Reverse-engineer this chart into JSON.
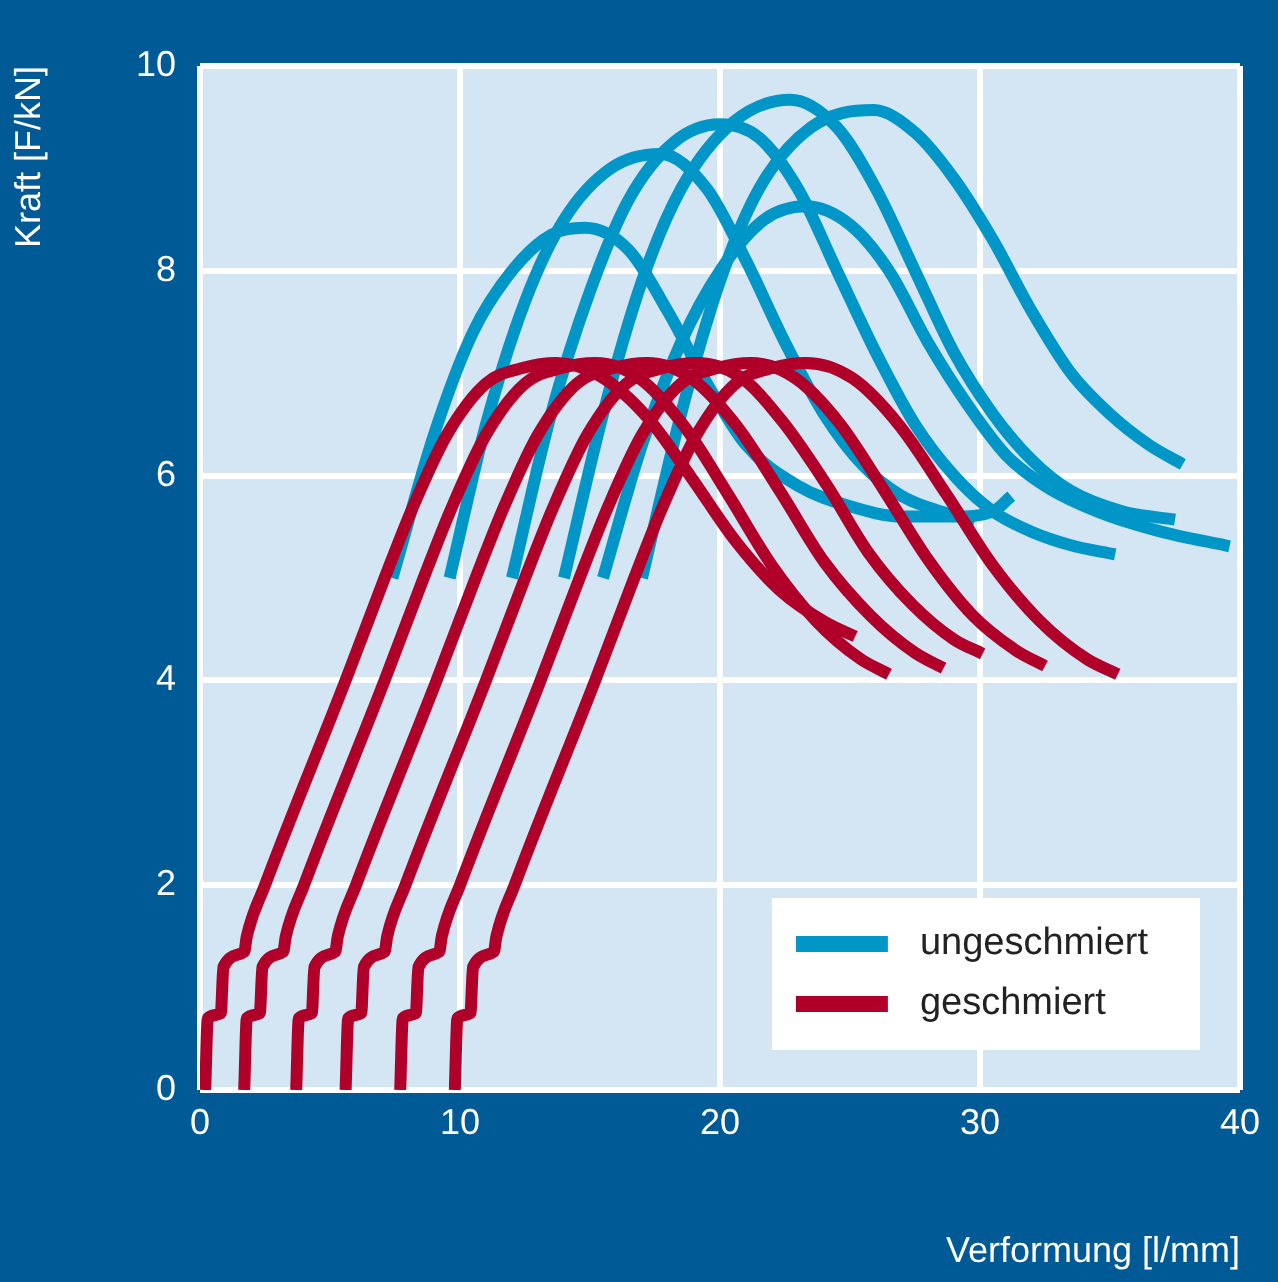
{
  "chart_data": {
    "type": "line",
    "xlabel": "Verformung [l/mm]",
    "ylabel": "Kraft [F/kN]",
    "xlim": [
      0,
      40
    ],
    "xticks": [
      0,
      10,
      20,
      30,
      40
    ],
    "ylim": [
      0,
      10
    ],
    "yticks": [
      0,
      2,
      4,
      6,
      8,
      10
    ],
    "grid": true,
    "legend": "bottom right",
    "marker": "none",
    "line_style": "solid",
    "series": [
      {
        "name": "ungeschmiert",
        "color": "#0096c8",
        "x": [
          7.4,
          9,
          10.5,
          12,
          13.5,
          14.8,
          16.5,
          18,
          19.5,
          21,
          23,
          25,
          27,
          29,
          30.5,
          31.2
        ],
        "values": [
          5,
          6.4,
          7.4,
          8,
          8.35,
          8.42,
          8.2,
          7.6,
          6.9,
          6.3,
          5.9,
          5.7,
          5.6,
          5.6,
          5.65,
          5.8
        ]
      },
      {
        "color": "#0096c8",
        "x": [
          9.6,
          11,
          12.5,
          14,
          15.8,
          17.7,
          19.5,
          21,
          22.5,
          24,
          25.5,
          27,
          28.5,
          29.8
        ],
        "values": [
          5,
          6.5,
          7.7,
          8.5,
          9,
          9.14,
          8.8,
          8.1,
          7.3,
          6.6,
          6.1,
          5.8,
          5.65,
          5.57
        ]
      },
      {
        "color": "#0096c8",
        "x": [
          12,
          13.5,
          15,
          16.5,
          18.2,
          20,
          21.5,
          23,
          24.5,
          26,
          27.5,
          29,
          30.5,
          32,
          33.5,
          35.2
        ],
        "values": [
          5,
          6.6,
          7.8,
          8.7,
          9.25,
          9.43,
          9.3,
          8.8,
          8,
          7.2,
          6.5,
          6,
          5.65,
          5.45,
          5.32,
          5.23
        ]
      },
      {
        "color": "#0096c8",
        "x": [
          14,
          15.5,
          17,
          18.5,
          20.5,
          22.7,
          24.5,
          26,
          27.5,
          29,
          30.5,
          32,
          33.5,
          35.5,
          37.5
        ],
        "values": [
          5,
          6.6,
          7.9,
          8.8,
          9.45,
          9.67,
          9.4,
          8.8,
          8,
          7.2,
          6.6,
          6.15,
          5.85,
          5.65,
          5.57
        ]
      },
      {
        "color": "#0096c8",
        "x": [
          17,
          18.5,
          20,
          21.5,
          23.5,
          25.9,
          27.5,
          29,
          30.5,
          32,
          33.5,
          35,
          36.5,
          37.8
        ],
        "values": [
          5,
          6.6,
          7.9,
          8.8,
          9.4,
          9.57,
          9.35,
          8.9,
          8.3,
          7.6,
          7,
          6.6,
          6.3,
          6.11
        ]
      },
      {
        "color": "#0096c8",
        "x": [
          15.5,
          17,
          18.5,
          20,
          21.7,
          23.3,
          25,
          26.5,
          28,
          29.5,
          31,
          32.5,
          34.5,
          37,
          39.6
        ],
        "values": [
          5,
          6.3,
          7.3,
          8,
          8.5,
          8.63,
          8.45,
          8,
          7.3,
          6.7,
          6.2,
          5.9,
          5.65,
          5.45,
          5.31
        ]
      },
      {
        "name": "geschmiert",
        "color": "#b0002a",
        "x": [
          0.2,
          0.3,
          0.8,
          0.9,
          1.7,
          1.8,
          2.5,
          5.6,
          7.1,
          8.2,
          9.5,
          11,
          12.4,
          13.7,
          15.4,
          17.2,
          18.9,
          20.6,
          22.3,
          24.1,
          25.2
        ],
        "values": [
          0,
          0.7,
          0.75,
          1.2,
          1.35,
          1.5,
          2,
          4,
          5,
          5.7,
          6.4,
          6.9,
          7.05,
          7.1,
          6.97,
          6.57,
          5.98,
          5.36,
          4.88,
          4.56,
          4.43
        ]
      },
      {
        "color": "#b0002a",
        "x": [
          1.7,
          1.8,
          2.3,
          2.4,
          3.2,
          3.3,
          4,
          7.1,
          8.6,
          9.7,
          11,
          12.5,
          13.9,
          15.2,
          16.9,
          18.6,
          20.3,
          22,
          23.7,
          25.4,
          26.5
        ],
        "values": [
          0,
          0.7,
          0.75,
          1.2,
          1.35,
          1.5,
          2,
          4,
          5,
          5.7,
          6.4,
          6.9,
          7.05,
          7.1,
          6.95,
          6.49,
          5.82,
          5.12,
          4.58,
          4.21,
          4.06
        ]
      },
      {
        "color": "#b0002a",
        "x": [
          3.7,
          3.8,
          4.3,
          4.4,
          5.2,
          5.3,
          6,
          9.1,
          10.6,
          11.7,
          13,
          14.5,
          15.9,
          17.2,
          18.9,
          20.6,
          22.3,
          24,
          25.8,
          27.5,
          28.6
        ],
        "values": [
          0,
          0.7,
          0.75,
          1.2,
          1.35,
          1.5,
          2,
          4,
          5,
          5.7,
          6.4,
          6.9,
          7.05,
          7.1,
          6.95,
          6.5,
          5.85,
          5.16,
          4.63,
          4.27,
          4.12
        ]
      },
      {
        "color": "#b0002a",
        "x": [
          5.6,
          5.7,
          6.2,
          6.3,
          7.1,
          7.2,
          7.9,
          11,
          12.5,
          13.6,
          14.9,
          16.4,
          17.8,
          19.1,
          20.8,
          22.4,
          24.1,
          25.7,
          27.4,
          29,
          30.1
        ],
        "values": [
          0,
          0.7,
          0.75,
          1.2,
          1.35,
          1.5,
          2,
          4,
          5,
          5.7,
          6.4,
          6.9,
          7.05,
          7.1,
          6.96,
          6.53,
          5.91,
          5.25,
          4.74,
          4.4,
          4.26
        ]
      },
      {
        "color": "#b0002a",
        "x": [
          7.7,
          7.8,
          8.3,
          8.4,
          9.2,
          9.3,
          10,
          13.1,
          14.6,
          15.7,
          17,
          18.5,
          19.9,
          21.2,
          22.9,
          24.6,
          26.3,
          28,
          29.7,
          31.4,
          32.5
        ],
        "values": [
          0,
          0.7,
          0.75,
          1.2,
          1.35,
          1.5,
          2,
          4,
          5,
          5.7,
          6.4,
          6.9,
          7.05,
          7.1,
          6.95,
          6.51,
          5.86,
          5.18,
          4.64,
          4.29,
          4.14
        ]
      },
      {
        "color": "#b0002a",
        "x": [
          9.8,
          9.9,
          10.4,
          10.5,
          11.3,
          11.4,
          12.1,
          15.2,
          16.7,
          17.8,
          19.1,
          20.6,
          22,
          23.3,
          25.1,
          26.9,
          28.7,
          30.5,
          32.3,
          34.1,
          35.3
        ],
        "values": [
          0,
          0.7,
          0.75,
          1.2,
          1.35,
          1.5,
          2,
          4,
          5,
          5.7,
          6.4,
          6.9,
          7.05,
          7.1,
          6.95,
          6.49,
          5.82,
          5.12,
          4.58,
          4.21,
          4.06
        ]
      }
    ]
  }
}
